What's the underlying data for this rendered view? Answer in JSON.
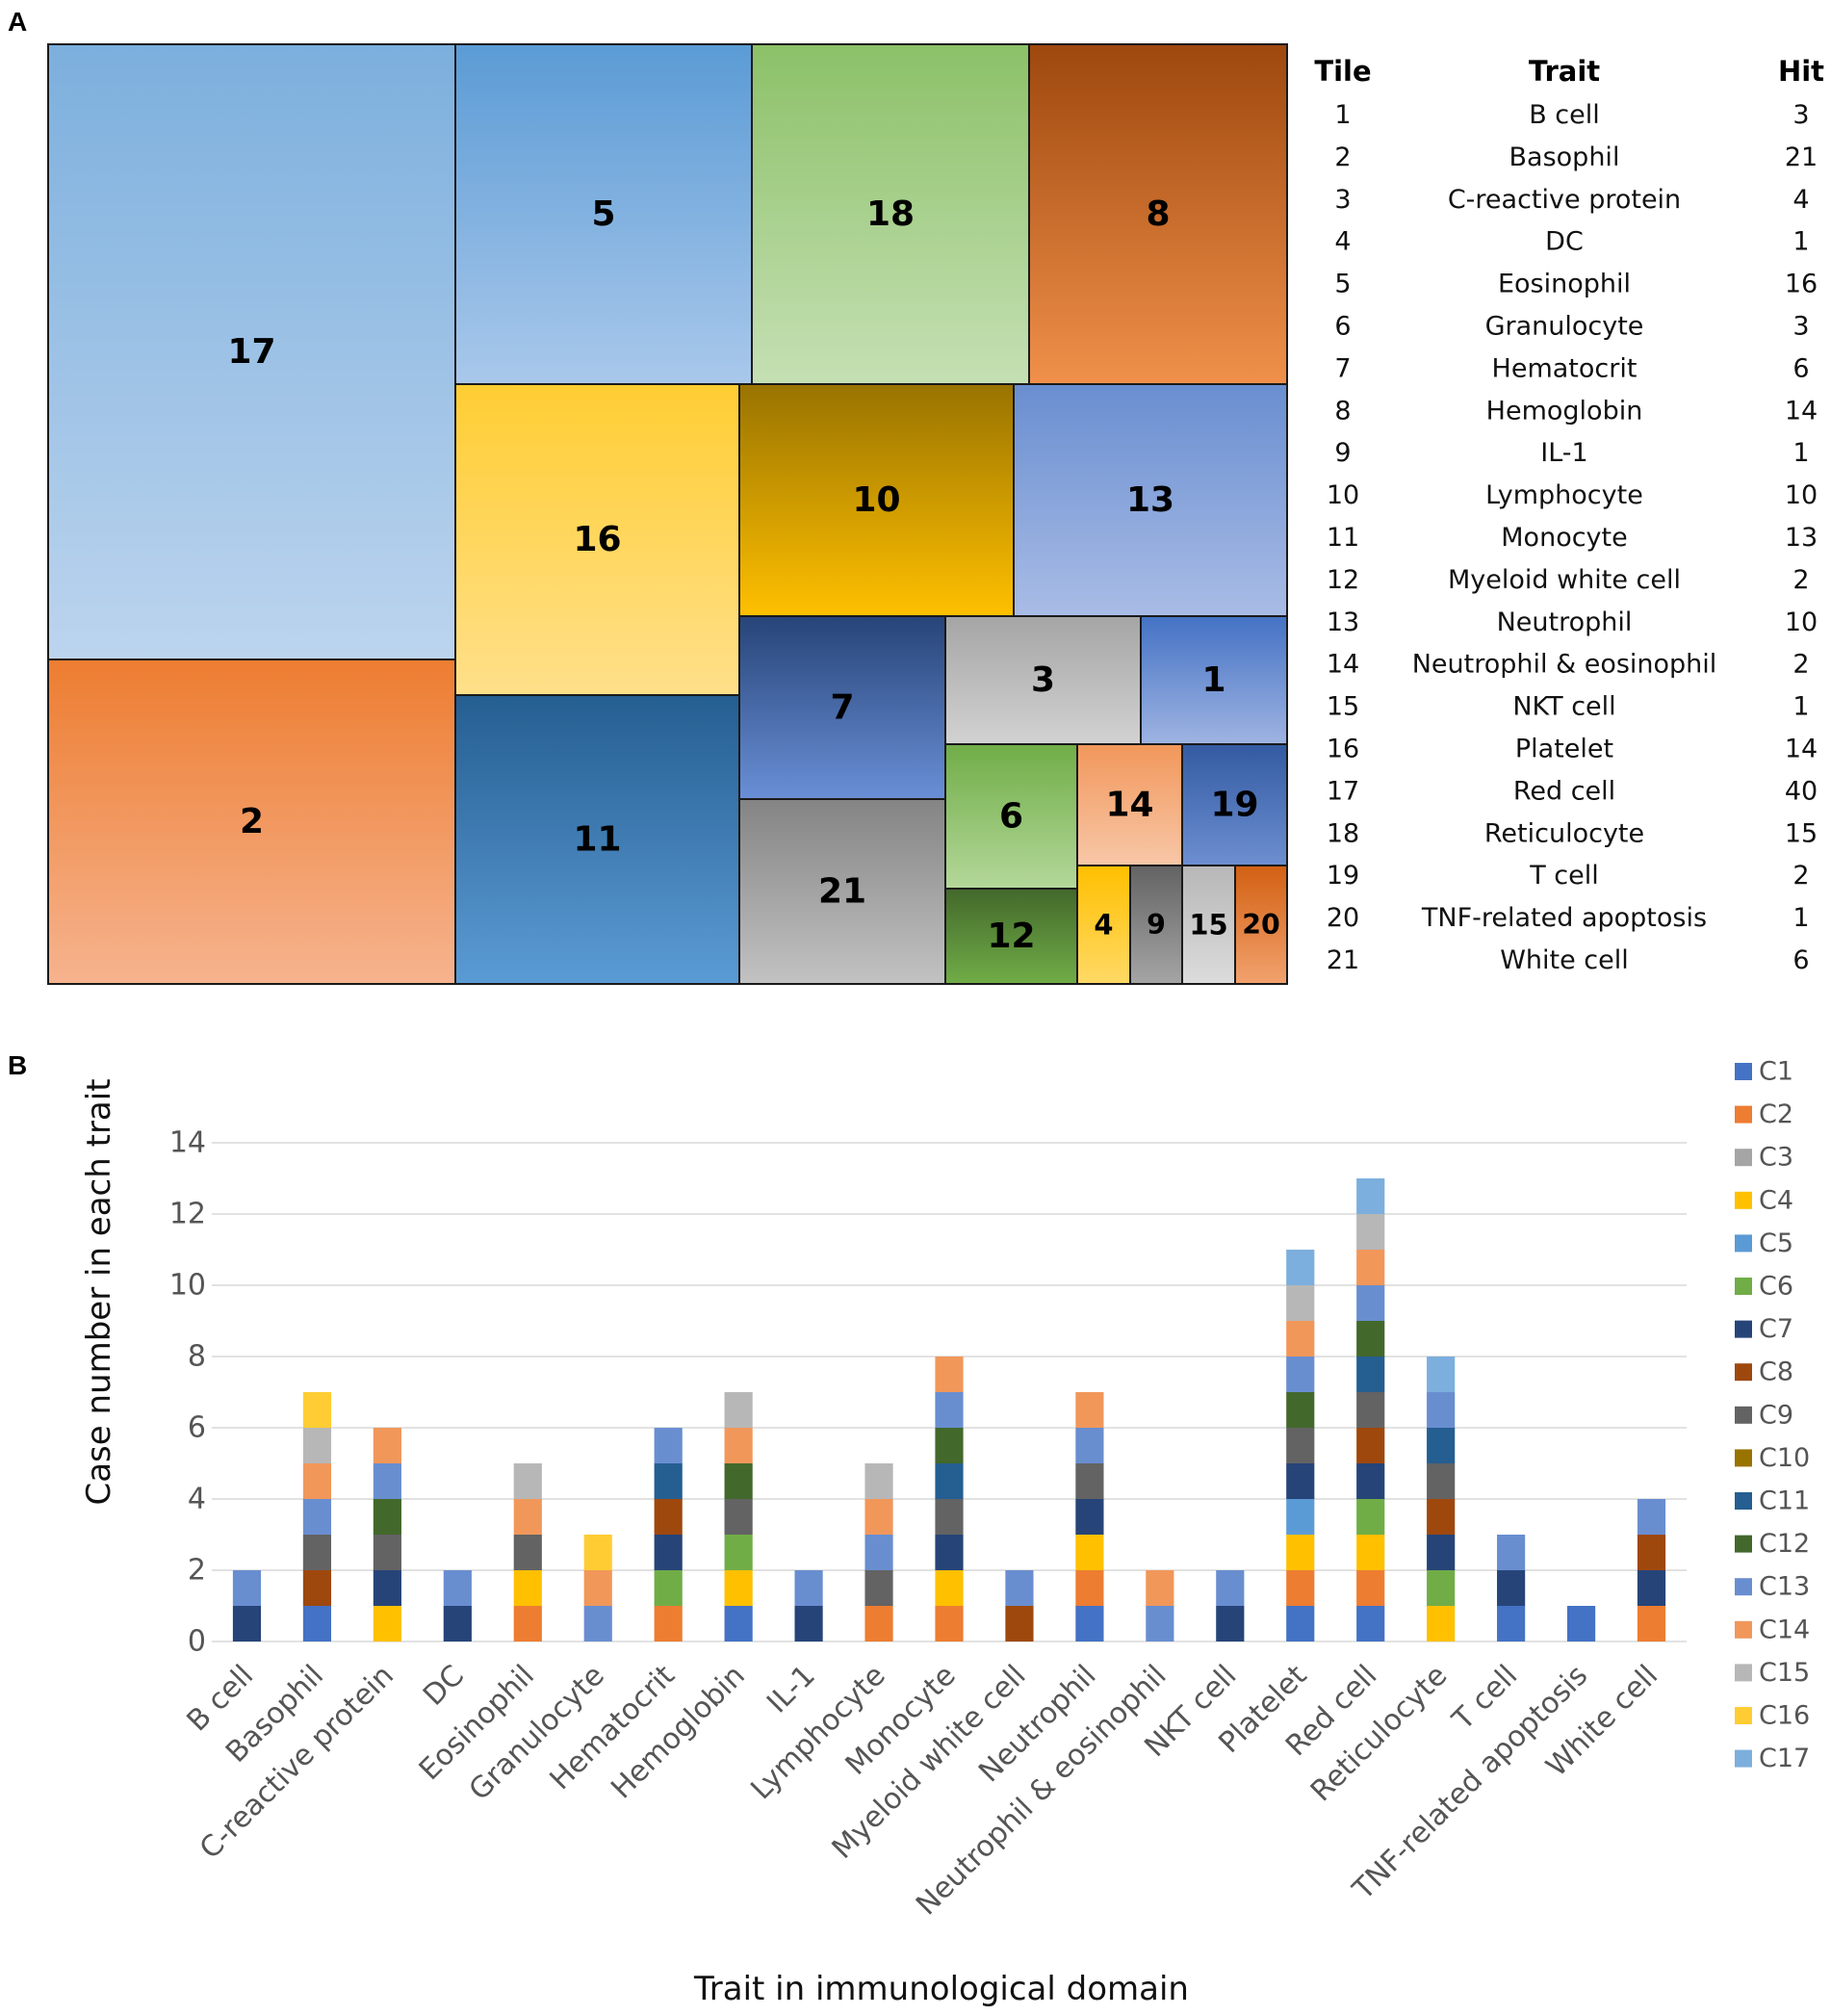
{
  "panels": {
    "a": "A",
    "b": "B"
  },
  "chart_data": [
    {
      "type": "treemap",
      "table_headers": {
        "tile": "Tile",
        "trait": "Trait",
        "hit": "Hit"
      },
      "tiles": [
        {
          "tile": "1",
          "trait": "B cell",
          "hit": 3,
          "color_top": "#4472c4",
          "color_bottom": "#9fb4e2"
        },
        {
          "tile": "2",
          "trait": "Basophil",
          "hit": 21,
          "color_top": "#ed7d31",
          "color_bottom": "#f6b38e"
        },
        {
          "tile": "3",
          "trait": "C-reactive protein",
          "hit": 4,
          "color_top": "#a5a5a5",
          "color_bottom": "#d2d2d2"
        },
        {
          "tile": "4",
          "trait": "DC",
          "hit": 1,
          "color_top": "#ffc000",
          "color_bottom": "#ffd966"
        },
        {
          "tile": "5",
          "trait": "Eosinophil",
          "hit": 16,
          "color_top": "#5b9bd5",
          "color_bottom": "#a9c8eb"
        },
        {
          "tile": "6",
          "trait": "Granulocyte",
          "hit": 3,
          "color_top": "#70ad47",
          "color_bottom": "#b4d89a"
        },
        {
          "tile": "7",
          "trait": "Hematocrit",
          "hit": 6,
          "color_top": "#264478",
          "color_bottom": "#6a8fd6"
        },
        {
          "tile": "8",
          "trait": "Hemoglobin",
          "hit": 14,
          "color_top": "#9e480e",
          "color_bottom": "#f0904a"
        },
        {
          "tile": "9",
          "trait": "IL-1",
          "hit": 1,
          "color_top": "#636363",
          "color_bottom": "#a5a5a5"
        },
        {
          "tile": "10",
          "trait": "Lymphocyte",
          "hit": 10,
          "color_top": "#997300",
          "color_bottom": "#ffc000"
        },
        {
          "tile": "11",
          "trait": "Monocyte",
          "hit": 13,
          "color_top": "#255e91",
          "color_bottom": "#5b9bd5"
        },
        {
          "tile": "12",
          "trait": "Myeloid white cell",
          "hit": 2,
          "color_top": "#43682b",
          "color_bottom": "#70ad47"
        },
        {
          "tile": "13",
          "trait": "Neutrophil",
          "hit": 10,
          "color_top": "#698ed0",
          "color_bottom": "#a9bce6"
        },
        {
          "tile": "14",
          "trait": "Neutrophil & eosinophil",
          "hit": 2,
          "color_top": "#f1975a",
          "color_bottom": "#f8c7a8"
        },
        {
          "tile": "15",
          "trait": "NKT cell",
          "hit": 1,
          "color_top": "#b7b7b7",
          "color_bottom": "#dcdcdc"
        },
        {
          "tile": "16",
          "trait": "Platelet",
          "hit": 14,
          "color_top": "#ffcd33",
          "color_bottom": "#ffe08a"
        },
        {
          "tile": "17",
          "trait": "Red cell",
          "hit": 40,
          "color_top": "#7cafdd",
          "color_bottom": "#bcd4ee"
        },
        {
          "tile": "18",
          "trait": "Reticulocyte",
          "hit": 15,
          "color_top": "#8cc168",
          "color_bottom": "#c5e0b4"
        },
        {
          "tile": "19",
          "trait": "T cell",
          "hit": 2,
          "color_top": "#335aa1",
          "color_bottom": "#6d8fd1"
        },
        {
          "tile": "20",
          "trait": "TNF-related apoptosis",
          "hit": 1,
          "color_top": "#d26012",
          "color_bottom": "#f2a26e"
        },
        {
          "tile": "21",
          "trait": "White cell",
          "hit": 6,
          "color_top": "#848484",
          "color_bottom": "#c2c2c2"
        }
      ]
    },
    {
      "type": "bar",
      "stacked": true,
      "ylabel": "Case number in each trait",
      "xlabel": "Trait in immunological domain",
      "ylim": [
        0,
        14
      ],
      "yticks": [
        0,
        2,
        4,
        6,
        8,
        10,
        12,
        14
      ],
      "grid": true,
      "legend_position": "right",
      "categories": [
        "B cell",
        "Basophil",
        "C-reactive protein",
        "DC",
        "Eosinophil",
        "Granulocyte",
        "Hematocrit",
        "Hemoglobin",
        "IL-1",
        "Lymphocyte",
        "Monocyte",
        "Myeloid white cell",
        "Neutrophil",
        "Neutrophil & eosinophil",
        "NKT cell",
        "Platelet",
        "Red cell",
        "Reticulocyte",
        "T cell",
        "TNF-related apoptosis",
        "White cell"
      ],
      "series": [
        {
          "name": "C1",
          "color": "#4472c4",
          "values": [
            0,
            1,
            0,
            0,
            0,
            0,
            0,
            1,
            0,
            0,
            0,
            0,
            1,
            0,
            0,
            1,
            1,
            0,
            1,
            1,
            0
          ]
        },
        {
          "name": "C2",
          "color": "#ed7d31",
          "values": [
            0,
            0,
            0,
            0,
            1,
            0,
            1,
            0,
            0,
            1,
            1,
            0,
            1,
            0,
            0,
            1,
            1,
            0,
            0,
            0,
            1
          ]
        },
        {
          "name": "C3",
          "color": "#a5a5a5",
          "values": [
            0,
            0,
            0,
            0,
            0,
            0,
            0,
            0,
            0,
            0,
            0,
            0,
            0,
            0,
            0,
            0,
            0,
            0,
            0,
            0,
            0
          ]
        },
        {
          "name": "C4",
          "color": "#ffc000",
          "values": [
            0,
            0,
            1,
            0,
            1,
            0,
            0,
            1,
            0,
            0,
            1,
            0,
            1,
            0,
            0,
            1,
            1,
            1,
            0,
            0,
            0
          ]
        },
        {
          "name": "C5",
          "color": "#5b9bd5",
          "values": [
            0,
            0,
            0,
            0,
            0,
            0,
            0,
            0,
            0,
            0,
            0,
            0,
            0,
            0,
            0,
            1,
            0,
            0,
            0,
            0,
            0
          ]
        },
        {
          "name": "C6",
          "color": "#70ad47",
          "values": [
            0,
            0,
            0,
            0,
            0,
            0,
            1,
            1,
            0,
            0,
            0,
            0,
            0,
            0,
            0,
            0,
            1,
            1,
            0,
            0,
            0
          ]
        },
        {
          "name": "C7",
          "color": "#264478",
          "values": [
            1,
            0,
            1,
            1,
            0,
            0,
            1,
            0,
            1,
            0,
            1,
            0,
            1,
            0,
            1,
            1,
            1,
            1,
            1,
            0,
            1
          ]
        },
        {
          "name": "C8",
          "color": "#9e480e",
          "values": [
            0,
            1,
            0,
            0,
            0,
            0,
            1,
            0,
            0,
            0,
            0,
            1,
            0,
            0,
            0,
            0,
            1,
            1,
            0,
            0,
            1
          ]
        },
        {
          "name": "C9",
          "color": "#636363",
          "values": [
            0,
            1,
            1,
            0,
            1,
            0,
            0,
            1,
            0,
            1,
            1,
            0,
            1,
            0,
            0,
            1,
            1,
            1,
            0,
            0,
            0
          ]
        },
        {
          "name": "C10",
          "color": "#997300",
          "values": [
            0,
            0,
            0,
            0,
            0,
            0,
            0,
            0,
            0,
            0,
            0,
            0,
            0,
            0,
            0,
            0,
            0,
            0,
            0,
            0,
            0
          ]
        },
        {
          "name": "C11",
          "color": "#255e91",
          "values": [
            0,
            0,
            0,
            0,
            0,
            0,
            1,
            0,
            0,
            0,
            1,
            0,
            0,
            0,
            0,
            0,
            1,
            1,
            0,
            0,
            0
          ]
        },
        {
          "name": "C12",
          "color": "#43682b",
          "values": [
            0,
            0,
            1,
            0,
            0,
            0,
            0,
            1,
            0,
            0,
            1,
            0,
            0,
            0,
            0,
            1,
            1,
            0,
            0,
            0,
            0
          ]
        },
        {
          "name": "C13",
          "color": "#698ed0",
          "values": [
            1,
            1,
            1,
            1,
            0,
            1,
            1,
            0,
            1,
            1,
            1,
            1,
            1,
            1,
            1,
            1,
            1,
            1,
            1,
            0,
            1
          ]
        },
        {
          "name": "C14",
          "color": "#f1975a",
          "values": [
            0,
            1,
            1,
            0,
            1,
            1,
            0,
            1,
            0,
            1,
            1,
            0,
            1,
            1,
            0,
            1,
            1,
            0,
            0,
            0,
            0
          ]
        },
        {
          "name": "C15",
          "color": "#b7b7b7",
          "values": [
            0,
            1,
            0,
            0,
            1,
            0,
            0,
            1,
            0,
            1,
            0,
            0,
            0,
            0,
            0,
            1,
            1,
            0,
            0,
            0,
            0
          ]
        },
        {
          "name": "C16",
          "color": "#ffcd33",
          "values": [
            0,
            1,
            0,
            0,
            0,
            1,
            0,
            0,
            0,
            0,
            0,
            0,
            0,
            0,
            0,
            0,
            0,
            0,
            0,
            0,
            0
          ]
        },
        {
          "name": "C17",
          "color": "#7cafdd",
          "values": [
            0,
            0,
            0,
            0,
            0,
            0,
            0,
            0,
            0,
            0,
            0,
            0,
            0,
            0,
            0,
            1,
            1,
            1,
            0,
            0,
            0
          ]
        }
      ]
    }
  ]
}
